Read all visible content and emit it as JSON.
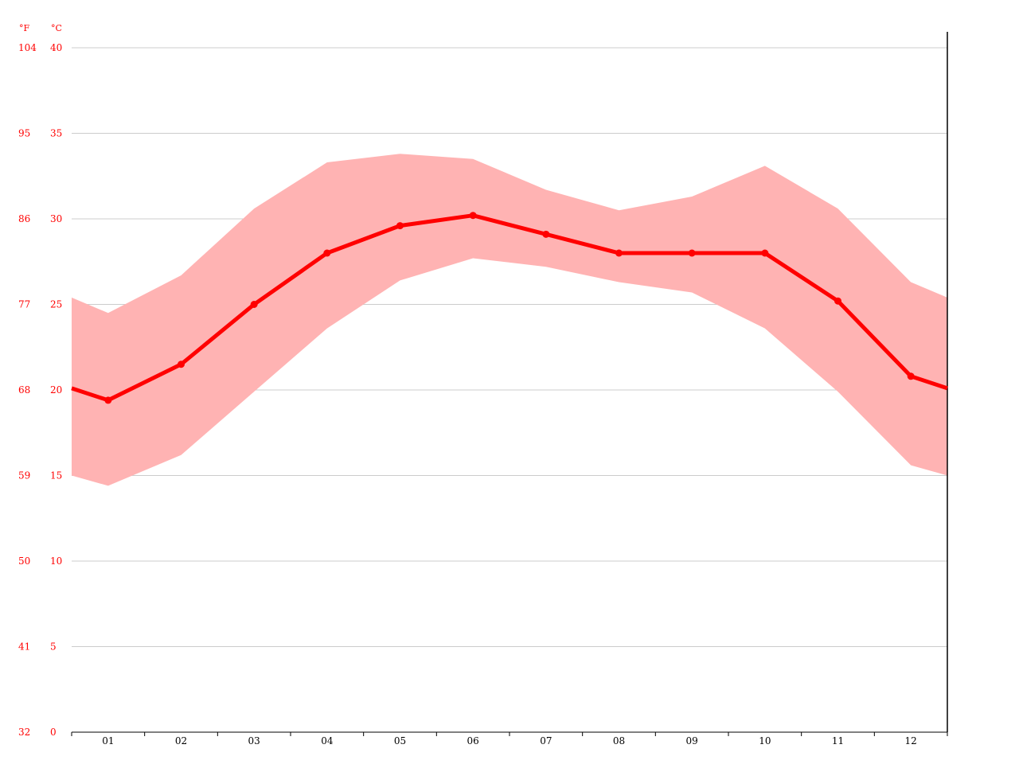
{
  "chart_data": {
    "type": "line",
    "units": {
      "fahrenheit": "°F",
      "celsius": "°C"
    },
    "categories": [
      "01",
      "02",
      "03",
      "04",
      "05",
      "06",
      "07",
      "08",
      "09",
      "10",
      "11",
      "12"
    ],
    "series": [
      {
        "role": "mean",
        "values": [
          19.4,
          21.5,
          25.0,
          28.0,
          29.6,
          30.2,
          29.1,
          28.0,
          28.0,
          28.0,
          25.2,
          20.8
        ]
      },
      {
        "role": "max",
        "values": [
          24.5,
          26.7,
          30.6,
          33.3,
          33.8,
          33.5,
          31.7,
          30.5,
          31.3,
          33.1,
          30.6,
          26.3
        ]
      },
      {
        "role": "min",
        "values": [
          14.4,
          16.2,
          19.9,
          23.6,
          26.4,
          27.7,
          27.2,
          26.3,
          25.7,
          23.6,
          19.9,
          15.6
        ]
      }
    ],
    "ylim": [
      0,
      40
    ],
    "yticks_c": [
      "0",
      "5",
      "10",
      "15",
      "20",
      "25",
      "30",
      "35",
      "40"
    ],
    "yticks_f": [
      "32",
      "41",
      "50",
      "59",
      "68",
      "77",
      "86",
      "95",
      "104"
    ],
    "grid": true,
    "colors": {
      "line": "#ff0000",
      "band": "#ffb3b3",
      "grid": "#cccccc",
      "axis": "#000000",
      "ytext": "#ff0000",
      "xtext": "#000000"
    }
  }
}
